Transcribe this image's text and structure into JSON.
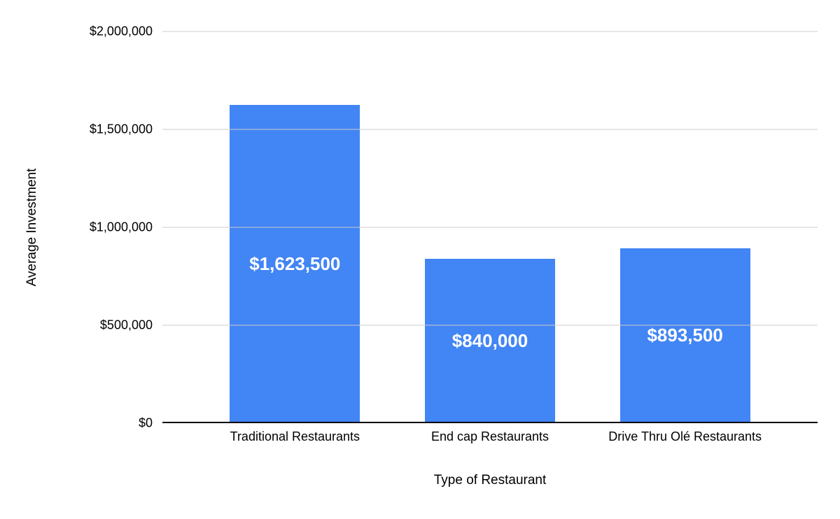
{
  "chart_data": {
    "type": "bar",
    "title": "",
    "xlabel": "Type of Restaurant",
    "ylabel": "Average Investment",
    "categories": [
      "Traditional Restaurants",
      "End cap Restaurants",
      "Drive Thru Olé Restaurants"
    ],
    "values": [
      1623500,
      840000,
      893500
    ],
    "data_labels": [
      "$1,623,500",
      "$840,000",
      "$893,500"
    ],
    "ylim": [
      0,
      2000000
    ],
    "yticks": [
      {
        "value": 0,
        "label": "$0"
      },
      {
        "value": 500000,
        "label": "$500,000"
      },
      {
        "value": 1000000,
        "label": "$1,000,000"
      },
      {
        "value": 1500000,
        "label": "$1,500,000"
      },
      {
        "value": 2000000,
        "label": "$2,000,000"
      }
    ],
    "grid": true,
    "legend": "none",
    "bar_color": "#4285f4",
    "data_label_color": "#ffffff",
    "gridline_color": "#cccccc",
    "axis_color": "#000000",
    "background_color": "#ffffff"
  }
}
